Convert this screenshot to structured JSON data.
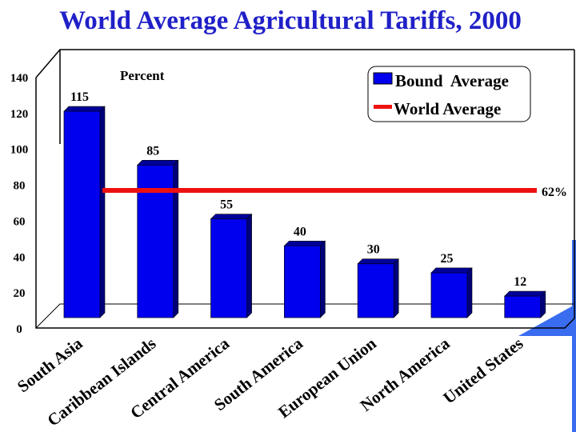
{
  "chart_data": {
    "type": "bar",
    "title": "World Average Agricultural Tariffs, 2000",
    "ylabel": "Percent",
    "xlabel": "",
    "ylim": [
      0,
      140
    ],
    "yticks": [
      "0",
      "20",
      "40",
      "60",
      "80",
      "100",
      "120",
      "140"
    ],
    "categories": [
      "South Asia",
      "Caribbean Islands",
      "Central America",
      "South America",
      "European Union",
      "North America",
      "United States"
    ],
    "series": [
      {
        "name": "Bound  Average",
        "values": [
          115,
          85,
          55,
          40,
          30,
          25,
          12
        ],
        "labels": [
          "115",
          "85",
          "55",
          "40",
          "30",
          "25",
          "12"
        ],
        "color": "#0000ee"
      },
      {
        "name": "World Average",
        "type": "reference-line",
        "value": 62,
        "label": "62%",
        "color": "#ee1111"
      }
    ],
    "legend": "top-right",
    "style": "3d",
    "grid": false
  }
}
